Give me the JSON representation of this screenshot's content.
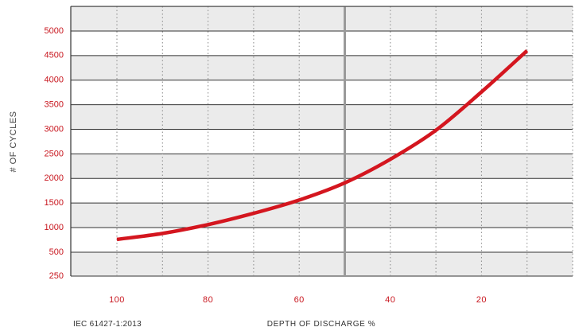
{
  "chart_data": {
    "type": "line",
    "xlabel": "DEPTH OF DISCHARGE %",
    "ylabel": "# OF CYCLES",
    "source_note": "IEC 61427-1:2013",
    "x_reversed": true,
    "xlim": [
      110,
      0
    ],
    "ylim": [
      250,
      5500
    ],
    "x_ticks": [
      100,
      80,
      60,
      40,
      20
    ],
    "y_ticks": [
      250,
      500,
      1000,
      1500,
      2000,
      2500,
      3000,
      3500,
      4000,
      4500,
      5000
    ],
    "reference_line_x": 50,
    "grid": true,
    "line_color": "#d4161f",
    "tick_color": "#c8161e",
    "band_color": "#ebebeb",
    "series": [
      {
        "x": [
          100,
          90,
          80,
          70,
          60,
          50,
          40,
          30,
          20,
          10
        ],
        "y": [
          760,
          880,
          1060,
          1290,
          1560,
          1910,
          2390,
          2980,
          3760,
          4600
        ]
      }
    ]
  }
}
